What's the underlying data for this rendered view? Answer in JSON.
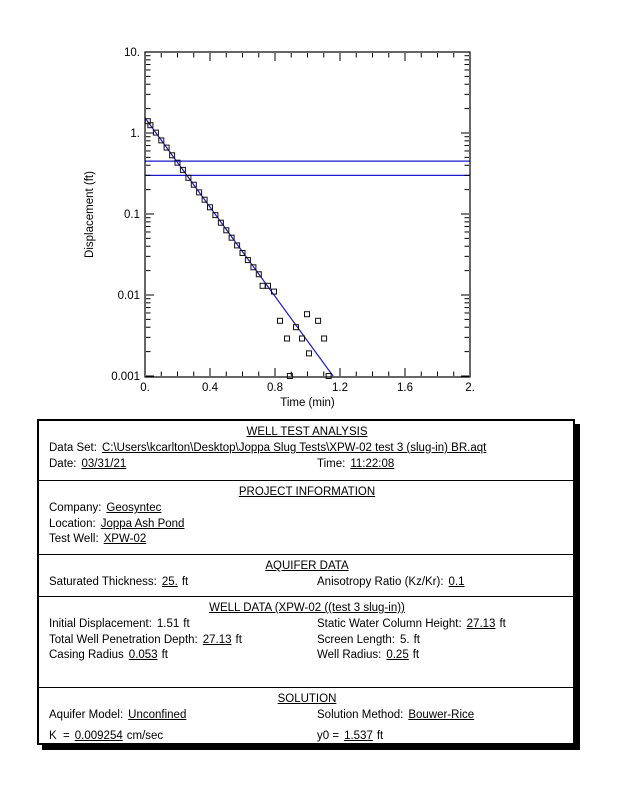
{
  "chart_data": {
    "type": "scatter",
    "title": "",
    "xlabel": "Time (min)",
    "ylabel": "Displacement (ft)",
    "grid": false,
    "legend": "none",
    "x_axis": {
      "min": 0,
      "max": 2,
      "minor_step": 0.1,
      "major_ticks": [
        0,
        0.4,
        0.8,
        1.2,
        1.6,
        2
      ],
      "labels": [
        "0.",
        "0.4",
        "0.8",
        "1.2",
        "1.6",
        "2."
      ]
    },
    "y_axis": {
      "scale": "log",
      "min": 0.001,
      "max": 10,
      "decades": [
        10,
        1,
        0.1,
        0.01,
        0.001
      ],
      "labels": [
        "10.",
        "1.",
        "0.1",
        "0.01",
        "0.001"
      ]
    },
    "series": [
      {
        "name": "observed-displacement",
        "marker": "open-square",
        "color": "#111111",
        "points": [
          [
            0.017,
            1.4
          ],
          [
            0.033,
            1.25
          ],
          [
            0.067,
            1.01
          ],
          [
            0.1,
            0.81
          ],
          [
            0.133,
            0.66
          ],
          [
            0.167,
            0.53
          ],
          [
            0.2,
            0.43
          ],
          [
            0.233,
            0.35
          ],
          [
            0.267,
            0.28
          ],
          [
            0.3,
            0.23
          ],
          [
            0.333,
            0.185
          ],
          [
            0.367,
            0.15
          ],
          [
            0.4,
            0.121
          ],
          [
            0.433,
            0.097
          ],
          [
            0.467,
            0.078
          ],
          [
            0.5,
            0.063
          ],
          [
            0.533,
            0.051
          ],
          [
            0.567,
            0.041
          ],
          [
            0.6,
            0.033
          ],
          [
            0.633,
            0.027
          ],
          [
            0.667,
            0.022
          ],
          [
            0.7,
            0.018
          ],
          [
            0.724,
            0.013
          ],
          [
            0.757,
            0.013
          ],
          [
            0.794,
            0.011
          ],
          [
            0.831,
            0.0048
          ],
          [
            0.874,
            0.0029
          ],
          [
            0.892,
            0.001
          ],
          [
            0.929,
            0.004
          ],
          [
            0.966,
            0.0029
          ],
          [
            0.997,
            0.0058
          ],
          [
            1.009,
            0.0019
          ],
          [
            1.065,
            0.0048
          ],
          [
            1.102,
            0.0029
          ],
          [
            1.13,
            0.001
          ]
        ]
      }
    ],
    "fit_line": {
      "name": "bouwer-rice-fit",
      "color": "#1a1acc",
      "from": [
        0,
        1.537
      ],
      "to": [
        1.157,
        0.001
      ]
    },
    "reference_lines": [
      {
        "value": 0.45,
        "color": "#1a1acc"
      },
      {
        "value": 0.3,
        "color": "#1a1acc"
      }
    ]
  },
  "report": {
    "s1": {
      "title": "WELL TEST ANALYSIS",
      "dataset_label": "Data Set:",
      "dataset_value": "C:\\Users\\kcarlton\\Desktop\\Joppa Slug Tests\\XPW-02 test 3 (slug-in) BR.aqt",
      "date_label": "Date:",
      "date_value": "03/31/21",
      "time_label": "Time:",
      "time_value": "11:22:08"
    },
    "s2": {
      "title": "PROJECT INFORMATION",
      "company_label": "Company:",
      "company_value": "Geosyntec",
      "location_label": "Location:",
      "location_value": "Joppa Ash Pond",
      "well_label": "Test Well:",
      "well_value": "XPW-02"
    },
    "s3": {
      "title": "AQUIFER DATA",
      "sat_label": "Saturated Thickness:",
      "sat_value": "25.",
      "sat_unit": "ft",
      "aniso_label": "Anisotropy Ratio (Kz/Kr):",
      "aniso_value": "0.1"
    },
    "s4": {
      "title": "WELL DATA (XPW-02 ((test 3 slug-in))",
      "init_label": "Initial Displacement:",
      "init_value": "1.51",
      "init_unit": "ft",
      "swch_label": "Static Water Column Height:",
      "swch_value": "27.13",
      "swch_unit": "ft",
      "twpd_label": "Total Well Penetration Depth:",
      "twpd_value": "27.13",
      "twpd_unit": "ft",
      "screen_label": "Screen Length:",
      "screen_value": "5.",
      "screen_unit": "ft",
      "casing_label": "Casing Radius",
      "casing_value": "0.053",
      "casing_unit": "ft",
      "wellr_label": "Well Radius:",
      "wellr_value": "0.25",
      "wellr_unit": "ft"
    },
    "s5": {
      "title": "SOLUTION",
      "model_label": "Aquifer Model:",
      "model_value": "Unconfined",
      "method_label": "Solution Method:",
      "method_value": "Bouwer-Rice",
      "k_label": "K  =",
      "k_value": "0.009254",
      "k_unit": "cm/sec",
      "y0_label": "y0 =",
      "y0_value": "1.537",
      "y0_unit": "ft"
    }
  }
}
